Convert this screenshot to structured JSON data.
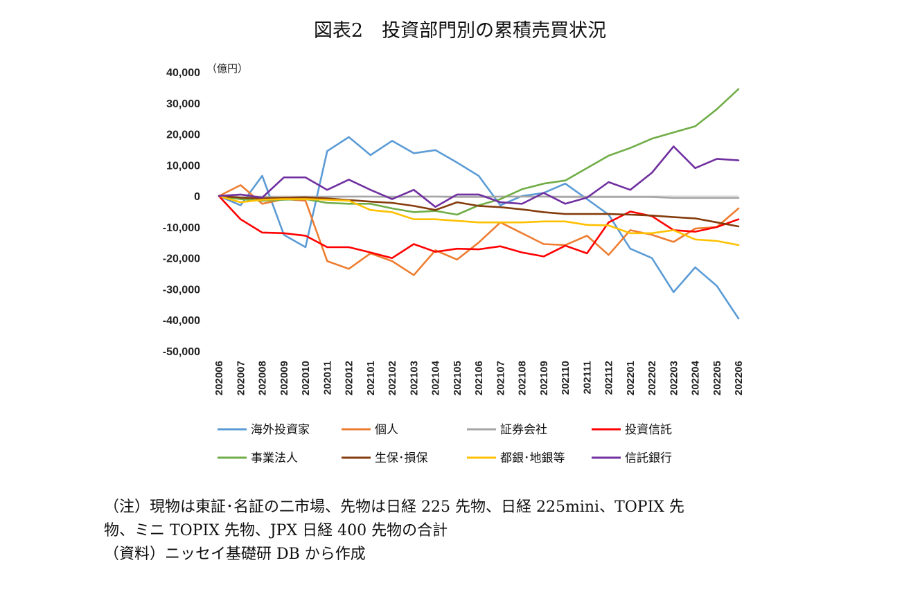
{
  "title": "図表2　投資部門別の累積売買状況",
  "notes": [
    "（注）現物は東証･名証の二市場、先物は日経 225 先物、日経 225mini、TOPIX 先",
    "物、ミニ TOPIX 先物、JPX 日経 400 先物の合計",
    "（資料）ニッセイ基礎研 DB から作成"
  ],
  "chart_data": {
    "type": "line",
    "unit_label": "（億円）",
    "ylim": [
      -50000,
      40000
    ],
    "yticks": [
      40000,
      30000,
      20000,
      10000,
      0,
      -10000,
      -20000,
      -30000,
      -40000,
      -50000
    ],
    "ytick_labels": [
      "40,000",
      "30,000",
      "20,000",
      "10,000",
      "0",
      "-10,000",
      "-20,000",
      "-30,000",
      "-40,000",
      "-50,000"
    ],
    "categories": [
      "202006",
      "202007",
      "202008",
      "202009",
      "202010",
      "202011",
      "202012",
      "202101",
      "202102",
      "202103",
      "202104",
      "202105",
      "202106",
      "202107",
      "202108",
      "202109",
      "202110",
      "202111",
      "202112",
      "202201",
      "202202",
      "202203",
      "202204",
      "202205",
      "202206"
    ],
    "grid": false,
    "legend_position": "bottom",
    "series": [
      {
        "name": "海外投資家",
        "color": "#5B9BD5",
        "values": [
          0,
          -3000,
          6500,
          -12500,
          -16500,
          14500,
          19000,
          13200,
          17800,
          13800,
          14800,
          10800,
          6500,
          -3000,
          0,
          1000,
          4000,
          -1000,
          -6000,
          -17000,
          -20000,
          -31000,
          -23000,
          -29000,
          -39500
        ]
      },
      {
        "name": "個人",
        "color": "#ED7D31",
        "values": [
          0,
          3500,
          -2500,
          -1000,
          -1500,
          -21000,
          -23500,
          -18500,
          -21000,
          -25500,
          -17500,
          -20500,
          -15000,
          -8500,
          -12000,
          -15500,
          -15800,
          -12800,
          -19000,
          -11000,
          -12500,
          -14800,
          -10500,
          -10000,
          -4000
        ]
      },
      {
        "name": "証券会社",
        "color": "#A5A5A5",
        "values": [
          0,
          -500,
          -300,
          -500,
          -400,
          -300,
          -200,
          -200,
          -300,
          -200,
          -200,
          -300,
          -300,
          -200,
          -200,
          -200,
          -300,
          -300,
          -300,
          -300,
          -300,
          -600,
          -600,
          -600,
          -600
        ]
      },
      {
        "name": "投資信託",
        "color": "#FF0000",
        "values": [
          0,
          -7500,
          -11800,
          -12000,
          -12800,
          -16500,
          -16500,
          -18200,
          -20000,
          -15500,
          -18000,
          -17000,
          -17200,
          -16200,
          -18200,
          -19500,
          -16000,
          -18500,
          -8500,
          -5000,
          -6500,
          -11000,
          -11500,
          -10000,
          -7500
        ]
      },
      {
        "name": "事業法人",
        "color": "#70AD47",
        "values": [
          0,
          -1000,
          -1500,
          -1200,
          -1000,
          -2200,
          -2500,
          -2500,
          -4000,
          -5200,
          -4800,
          -6000,
          -3000,
          -1000,
          2200,
          4000,
          5000,
          9000,
          13000,
          15500,
          18500,
          20500,
          22500,
          28000,
          34500
        ]
      },
      {
        "name": "生保･損保",
        "color": "#843C0C",
        "values": [
          0,
          -500,
          -800,
          -500,
          -400,
          -800,
          -1300,
          -1800,
          -2200,
          -3200,
          -4500,
          -2000,
          -3200,
          -3600,
          -4300,
          -5200,
          -5800,
          -5800,
          -5800,
          -6000,
          -6300,
          -6800,
          -7200,
          -8500,
          -9800
        ]
      },
      {
        "name": "都銀･地銀等",
        "color": "#FFC000",
        "values": [
          0,
          -2000,
          -1200,
          -1000,
          -1000,
          -1200,
          -1500,
          -4500,
          -5200,
          -7500,
          -7500,
          -8000,
          -8500,
          -8500,
          -8500,
          -8200,
          -8200,
          -9300,
          -9500,
          -12000,
          -12000,
          -11000,
          -14000,
          -14500,
          -15800
        ]
      },
      {
        "name": "信託銀行",
        "color": "#7030A0",
        "values": [
          0,
          500,
          -500,
          6000,
          6000,
          2000,
          5300,
          2000,
          -1000,
          2000,
          -3500,
          500,
          500,
          -2000,
          -2500,
          1000,
          -2500,
          -500,
          4500,
          2000,
          7500,
          16000,
          9000,
          12000,
          11500
        ]
      }
    ]
  }
}
